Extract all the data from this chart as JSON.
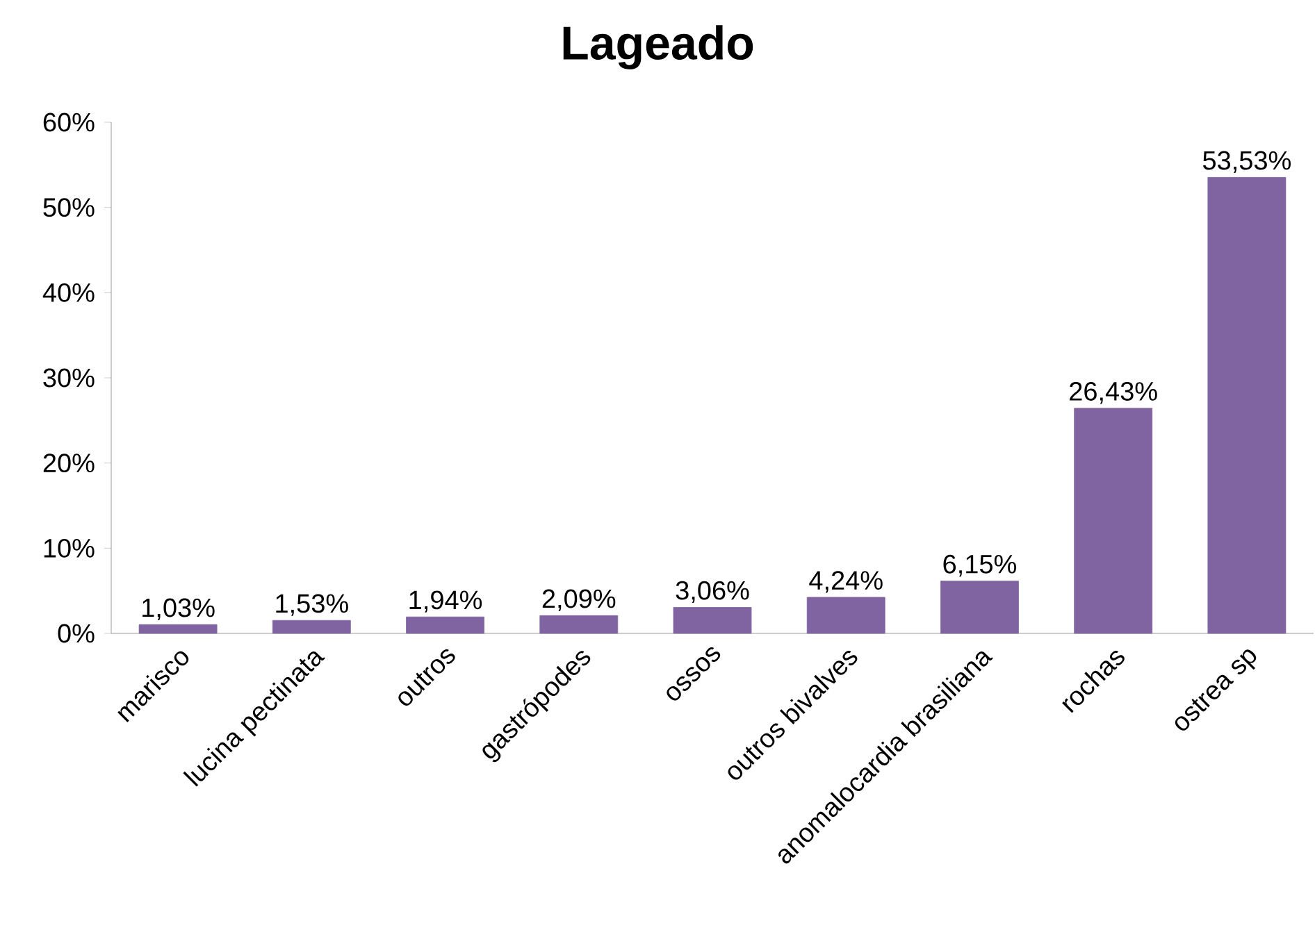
{
  "chart_data": {
    "type": "bar",
    "title": "Lageado",
    "categories": [
      "marisco",
      "lucina pectinata",
      "outros",
      "gastrópodes",
      "ossos",
      "outros bivalves",
      "anomalocardia brasiliana",
      "rochas",
      "ostrea sp"
    ],
    "values": [
      1.03,
      1.53,
      1.94,
      2.09,
      3.06,
      4.24,
      6.15,
      26.43,
      53.53
    ],
    "value_labels": [
      "1,03%",
      "1,53%",
      "1,94%",
      "2,09%",
      "3,06%",
      "4,24%",
      "6,15%",
      "26,43%",
      "53,53%"
    ],
    "color": "#8064a2",
    "ylim": [
      0,
      60
    ],
    "yticks": [
      {
        "value": 0,
        "label": "0%"
      },
      {
        "value": 10,
        "label": "10%"
      },
      {
        "value": 20,
        "label": "20%"
      },
      {
        "value": 30,
        "label": "30%"
      },
      {
        "value": 40,
        "label": "40%"
      },
      {
        "value": 50,
        "label": "50%"
      },
      {
        "value": 60,
        "label": "60%"
      }
    ]
  }
}
